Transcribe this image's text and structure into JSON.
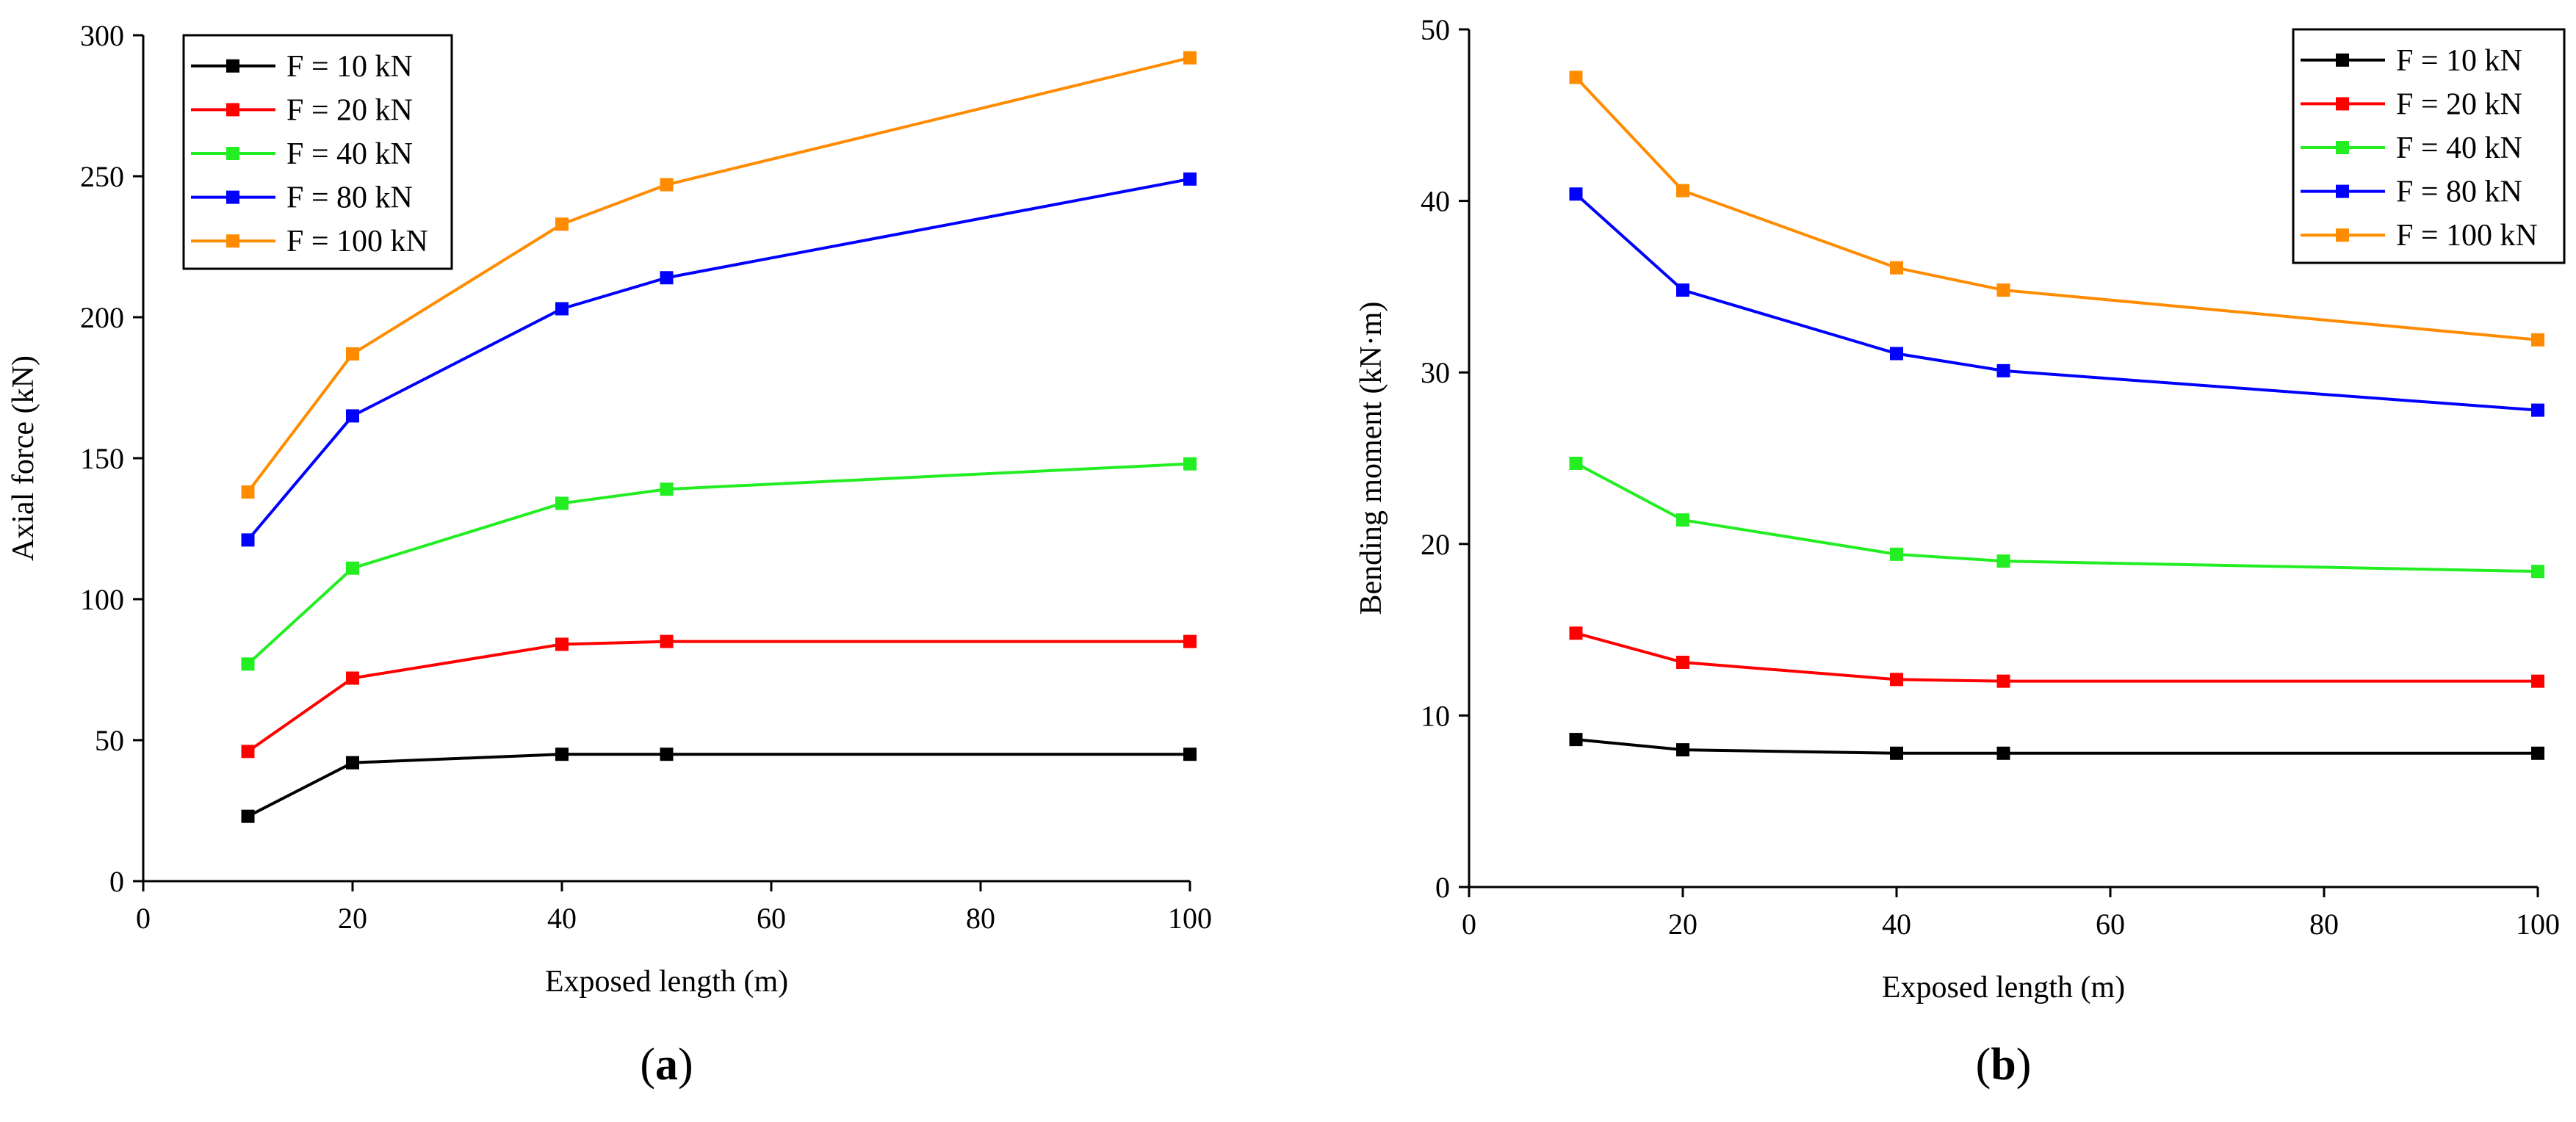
{
  "chart_data": [
    {
      "type": "line",
      "panel_label": "(a)",
      "panel_letter": "a",
      "xlabel": "Exposed length (m)",
      "ylabel": "Axial force (kN)",
      "xlim": [
        0,
        100
      ],
      "ylim": [
        0,
        300
      ],
      "xticks": [
        0,
        20,
        40,
        60,
        80,
        100
      ],
      "yticks": [
        0,
        50,
        100,
        150,
        200,
        250,
        300
      ],
      "legend_position": "top-left",
      "x": [
        10,
        20,
        40,
        50,
        100
      ],
      "series": [
        {
          "name": "F = 10 kN",
          "color": "#000000",
          "values": [
            23,
            42,
            45,
            45,
            45
          ]
        },
        {
          "name": "F = 20 kN",
          "color": "#ff0000",
          "values": [
            46,
            72,
            84,
            85,
            85
          ]
        },
        {
          "name": "F = 40 kN",
          "color": "#22ee22",
          "values": [
            77,
            111,
            134,
            139,
            148
          ]
        },
        {
          "name": "F = 80 kN",
          "color": "#0000ff",
          "values": [
            121,
            165,
            203,
            214,
            249
          ]
        },
        {
          "name": "F = 100 kN",
          "color": "#ff8c00",
          "values": [
            138,
            187,
            233,
            247,
            292
          ]
        }
      ]
    },
    {
      "type": "line",
      "panel_label": "(b)",
      "panel_letter": "b",
      "xlabel": "Exposed length (m)",
      "ylabel": "Bending moment (kN·m)",
      "xlim": [
        0,
        100
      ],
      "ylim": [
        0,
        50
      ],
      "xticks": [
        0,
        20,
        40,
        60,
        80,
        100
      ],
      "yticks": [
        0,
        10,
        20,
        30,
        40,
        50
      ],
      "legend_position": "top-right",
      "x": [
        10,
        20,
        40,
        50,
        100
      ],
      "series": [
        {
          "name": "F = 10 kN",
          "color": "#000000",
          "values": [
            8.6,
            8.0,
            7.8,
            7.8,
            7.8
          ]
        },
        {
          "name": "F = 20 kN",
          "color": "#ff0000",
          "values": [
            14.8,
            13.1,
            12.1,
            12.0,
            12.0
          ]
        },
        {
          "name": "F = 40 kN",
          "color": "#22ee22",
          "values": [
            24.7,
            21.4,
            19.4,
            19.0,
            18.4
          ]
        },
        {
          "name": "F = 80 kN",
          "color": "#0000ff",
          "values": [
            40.4,
            34.8,
            31.1,
            30.1,
            27.8
          ]
        },
        {
          "name": "F = 100 kN",
          "color": "#ff8c00",
          "values": [
            47.2,
            40.6,
            36.1,
            34.8,
            31.9
          ]
        }
      ]
    }
  ]
}
